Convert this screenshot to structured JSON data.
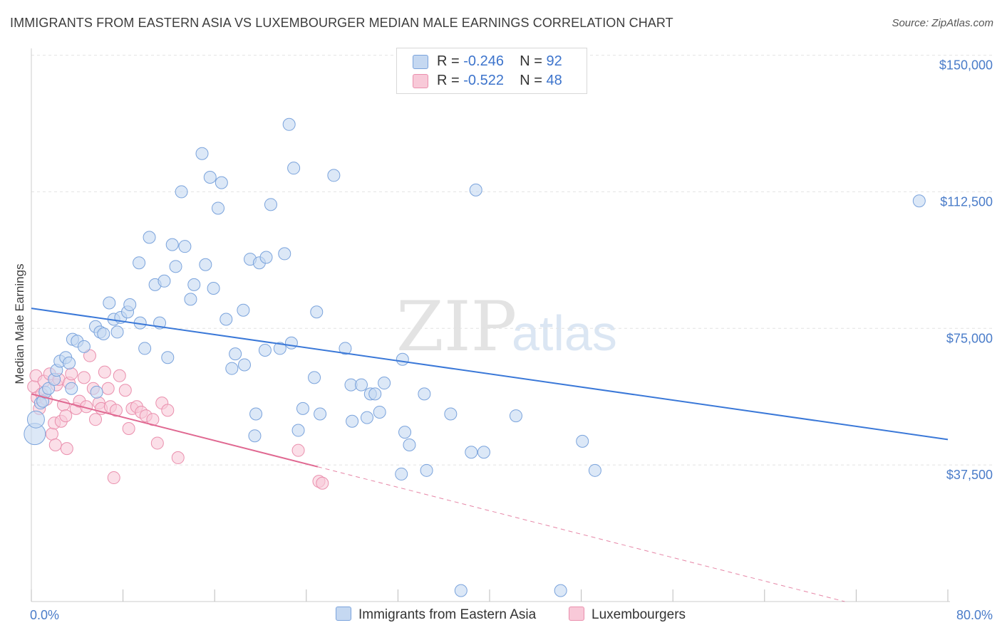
{
  "title": "IMMIGRANTS FROM EASTERN ASIA VS LUXEMBOURGER MEDIAN MALE EARNINGS CORRELATION CHART",
  "source": "Source: ZipAtlas.com",
  "watermark": {
    "zip": "ZIP",
    "atlas": "atlas"
  },
  "legend": {
    "rows": [
      {
        "r_label": "R =",
        "r_value": "-0.246",
        "n_label": "N =",
        "n_value": "92"
      },
      {
        "r_label": "R =",
        "r_value": "-0.522",
        "n_label": "N =",
        "n_value": "48"
      }
    ]
  },
  "bottom_legend": {
    "series1": "Immigrants from Eastern Asia",
    "series2": "Luxembourgers"
  },
  "colors": {
    "blue_fill": "#c5d8f1",
    "blue_stroke": "#7aa3dc",
    "blue_line": "#3a78d8",
    "pink_fill": "#f8c9d8",
    "pink_stroke": "#ea8fad",
    "pink_line": "#e06891",
    "axis_text": "#4a7cc9"
  },
  "chart_data": {
    "type": "scatter",
    "title": "IMMIGRANTS FROM EASTERN ASIA VS LUXEMBOURGER MEDIAN MALE EARNINGS CORRELATION CHART",
    "xlabel": "",
    "ylabel": "Median Male Earnings",
    "xlim": [
      0,
      80
    ],
    "ylim": [
      0,
      155000
    ],
    "x_tick_labels": [
      "0.0%",
      "80.0%"
    ],
    "y_ticks": [
      37500,
      75000,
      112500,
      150000
    ],
    "y_tick_labels": [
      "$37,500",
      "$75,000",
      "$112,500",
      "$150,000"
    ],
    "grid": "horizontal dashed",
    "series": [
      {
        "name": "Immigrants from Eastern Asia",
        "R": -0.246,
        "N": 92,
        "trend": {
          "x0": 0,
          "y0": 80500,
          "x1": 80,
          "y1": 44500
        },
        "points": [
          [
            0.3,
            46000
          ],
          [
            0.4,
            50000
          ],
          [
            0.8,
            54500
          ],
          [
            1.0,
            55000
          ],
          [
            1.2,
            57500
          ],
          [
            1.5,
            58500
          ],
          [
            2.0,
            61000
          ],
          [
            2.2,
            63500
          ],
          [
            2.5,
            66000
          ],
          [
            3.0,
            67000
          ],
          [
            3.3,
            65500
          ],
          [
            3.5,
            58500
          ],
          [
            3.6,
            72000
          ],
          [
            4.0,
            71500
          ],
          [
            4.6,
            70000
          ],
          [
            5.6,
            75500
          ],
          [
            6.0,
            74000
          ],
          [
            5.7,
            57500
          ],
          [
            6.3,
            73500
          ],
          [
            6.8,
            82000
          ],
          [
            7.2,
            77500
          ],
          [
            7.5,
            74000
          ],
          [
            7.8,
            78000
          ],
          [
            8.4,
            79500
          ],
          [
            8.6,
            81500
          ],
          [
            9.5,
            76500
          ],
          [
            9.4,
            93000
          ],
          [
            9.9,
            69500
          ],
          [
            10.3,
            100000
          ],
          [
            10.8,
            87000
          ],
          [
            11.2,
            76500
          ],
          [
            11.6,
            88000
          ],
          [
            11.9,
            67000
          ],
          [
            12.3,
            98000
          ],
          [
            12.6,
            92000
          ],
          [
            13.1,
            112500
          ],
          [
            13.4,
            97500
          ],
          [
            13.9,
            83000
          ],
          [
            14.2,
            87000
          ],
          [
            14.9,
            123000
          ],
          [
            15.2,
            92500
          ],
          [
            15.6,
            116500
          ],
          [
            15.9,
            86000
          ],
          [
            16.3,
            108000
          ],
          [
            16.6,
            115000
          ],
          [
            17.0,
            77500
          ],
          [
            17.5,
            64000
          ],
          [
            17.8,
            68000
          ],
          [
            18.6,
            65000
          ],
          [
            18.5,
            80000
          ],
          [
            19.1,
            94000
          ],
          [
            19.6,
            51500
          ],
          [
            19.9,
            93000
          ],
          [
            19.5,
            45500
          ],
          [
            20.5,
            94500
          ],
          [
            20.4,
            69000
          ],
          [
            20.9,
            109000
          ],
          [
            21.7,
            69500
          ],
          [
            22.1,
            95500
          ],
          [
            22.5,
            131000
          ],
          [
            22.7,
            71000
          ],
          [
            22.9,
            119000
          ],
          [
            23.3,
            47000
          ],
          [
            23.7,
            53000
          ],
          [
            24.7,
            61500
          ],
          [
            24.9,
            79500
          ],
          [
            25.2,
            51500
          ],
          [
            26.4,
            117000
          ],
          [
            27.4,
            69500
          ],
          [
            27.9,
            59500
          ],
          [
            28.0,
            49500
          ],
          [
            28.8,
            59500
          ],
          [
            29.3,
            50500
          ],
          [
            29.6,
            57000
          ],
          [
            30.0,
            57000
          ],
          [
            30.4,
            52000
          ],
          [
            30.8,
            60000
          ],
          [
            32.3,
            35000
          ],
          [
            32.6,
            46500
          ],
          [
            32.4,
            66500
          ],
          [
            33.0,
            43000
          ],
          [
            34.3,
            57000
          ],
          [
            34.5,
            36000
          ],
          [
            36.6,
            51500
          ],
          [
            37.5,
            3000
          ],
          [
            38.4,
            41000
          ],
          [
            38.8,
            113000
          ],
          [
            39.5,
            41000
          ],
          [
            42.3,
            51000
          ],
          [
            46.2,
            3000
          ],
          [
            48.1,
            44000
          ],
          [
            49.2,
            36000
          ],
          [
            77.5,
            110000
          ]
        ]
      },
      {
        "name": "Luxembourgers",
        "R": -0.522,
        "N": 48,
        "trend": {
          "x0": 0,
          "y0": 57000,
          "x1": 25,
          "y1": 37000
        },
        "trend_dashed_extension": {
          "x0": 25,
          "y0": 37000,
          "x1": 71,
          "y1": 0
        },
        "points": [
          [
            0.2,
            59000
          ],
          [
            0.4,
            62000
          ],
          [
            0.5,
            56000
          ],
          [
            0.7,
            53000
          ],
          [
            0.9,
            57000
          ],
          [
            1.1,
            60500
          ],
          [
            1.3,
            55500
          ],
          [
            1.6,
            62500
          ],
          [
            1.8,
            46000
          ],
          [
            2.0,
            49000
          ],
          [
            2.1,
            43000
          ],
          [
            2.2,
            59500
          ],
          [
            2.4,
            61000
          ],
          [
            2.6,
            49500
          ],
          [
            2.8,
            54000
          ],
          [
            3.0,
            51000
          ],
          [
            3.1,
            42000
          ],
          [
            3.3,
            60000
          ],
          [
            3.5,
            62500
          ],
          [
            3.9,
            53000
          ],
          [
            4.2,
            55000
          ],
          [
            4.6,
            61500
          ],
          [
            4.8,
            53500
          ],
          [
            5.1,
            67500
          ],
          [
            5.4,
            58500
          ],
          [
            5.6,
            50000
          ],
          [
            5.9,
            54500
          ],
          [
            6.1,
            53000
          ],
          [
            6.4,
            63000
          ],
          [
            6.7,
            58500
          ],
          [
            6.9,
            53500
          ],
          [
            7.2,
            34000
          ],
          [
            7.4,
            52500
          ],
          [
            7.7,
            62000
          ],
          [
            8.2,
            58000
          ],
          [
            8.5,
            47500
          ],
          [
            8.8,
            53000
          ],
          [
            9.2,
            53500
          ],
          [
            9.6,
            52000
          ],
          [
            10.0,
            51000
          ],
          [
            10.6,
            50000
          ],
          [
            11.0,
            43500
          ],
          [
            11.4,
            54500
          ],
          [
            11.9,
            52500
          ],
          [
            12.8,
            39500
          ],
          [
            23.3,
            41500
          ],
          [
            25.1,
            33000
          ],
          [
            25.4,
            32500
          ]
        ]
      }
    ]
  }
}
